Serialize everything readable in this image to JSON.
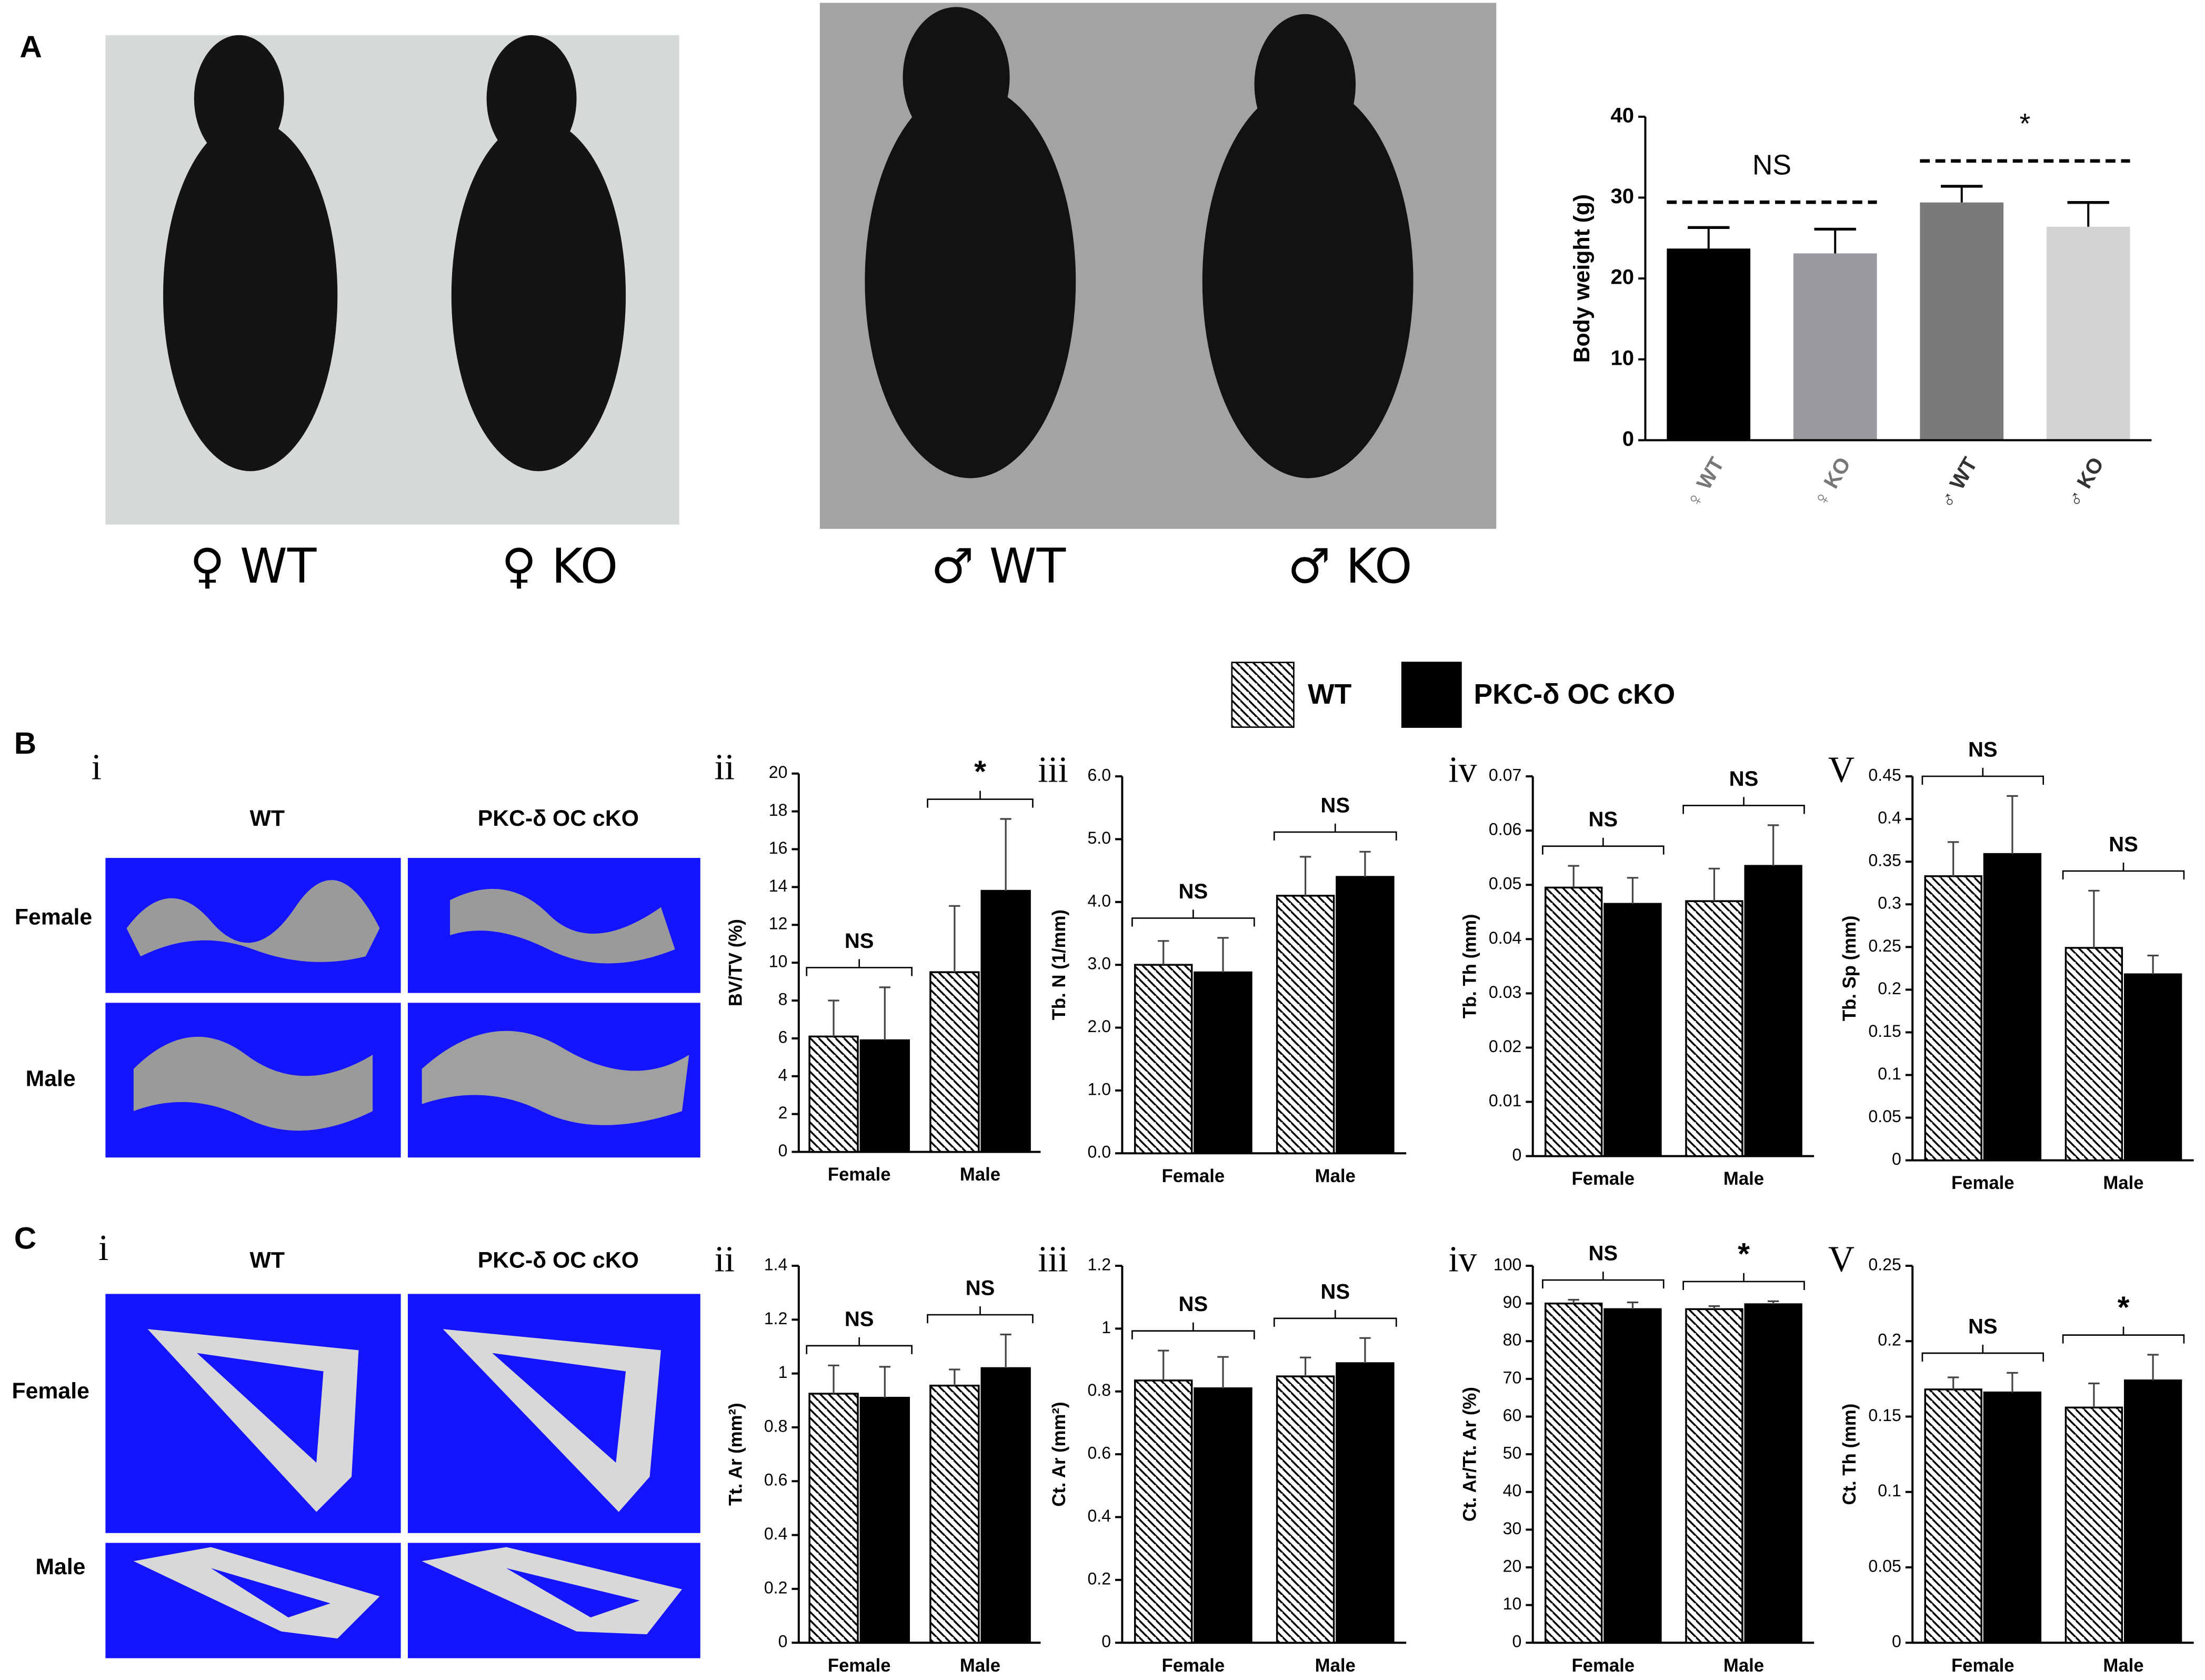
{
  "panel_labels": [
    "A",
    "B",
    "C"
  ],
  "photo_captions": [
    "♀ WT",
    "♀ KO",
    "♂ WT",
    "♂ KO"
  ],
  "legend": [
    {
      "name": "WT",
      "pattern": "hatch"
    },
    {
      "name": "PKC-δ OC cKO",
      "color": "#000000"
    }
  ],
  "renders": [
    {
      "label": "i",
      "columns": [
        "WT",
        "PKC-δ OC cKO"
      ],
      "rows": [
        "Female",
        "Male"
      ]
    },
    {
      "label": "i",
      "columns": [
        "WT",
        "PKC-δ OC cKO"
      ],
      "rows": [
        "Female",
        "Male"
      ]
    }
  ],
  "chart_data": [
    {
      "type": "bar",
      "ylabel": "Body weight (g)",
      "categories": [
        "♀ WT",
        "♀ KO",
        "♂ WT",
        "♂ KO"
      ],
      "values": [
        23.7,
        23.1,
        29.4,
        26.4
      ],
      "errors": [
        2.6,
        3.0,
        2.0,
        3.0
      ],
      "colors": [
        "#000000",
        "#9a9a9e",
        "#7a7a7a",
        "#d3d3d3"
      ],
      "ylim": [
        0,
        40
      ],
      "yticks": [
        0,
        10,
        20,
        30,
        40
      ],
      "annotations": [
        "NS",
        "*"
      ]
    },
    {
      "type": "grouped_bar",
      "label": "ii",
      "ylabel": "BV/TV (%)",
      "categories": [
        "Female",
        "Male"
      ],
      "series": [
        {
          "pattern": "hatch",
          "values": [
            6.1,
            9.5
          ],
          "errors": [
            1.9,
            3.5
          ]
        },
        {
          "color": "#000000",
          "values": [
            5.9,
            13.8
          ],
          "errors": [
            2.8,
            3.8
          ]
        }
      ],
      "ylim": [
        0,
        20
      ],
      "yticks": [
        0,
        2,
        4,
        6,
        8,
        10,
        12,
        14,
        16,
        18,
        20
      ],
      "annotations": [
        "NS",
        "*"
      ]
    },
    {
      "type": "grouped_bar",
      "label": "iii",
      "ylabel": "Tb. N (1/mm)",
      "categories": [
        "Female",
        "Male"
      ],
      "series": [
        {
          "pattern": "hatch",
          "values": [
            3.0,
            4.1
          ],
          "errors": [
            0.38,
            0.62
          ]
        },
        {
          "color": "#000000",
          "values": [
            2.88,
            4.4
          ],
          "errors": [
            0.55,
            0.4
          ]
        }
      ],
      "ylim": [
        0,
        6
      ],
      "yticks": [
        {
          "value": 0,
          "label": "0.0"
        },
        {
          "value": 1,
          "label": "1.0"
        },
        {
          "value": 2,
          "label": "2.0"
        },
        {
          "value": 3,
          "label": "3.0"
        },
        {
          "value": 4,
          "label": "4.0"
        },
        {
          "value": 5,
          "label": "5.0"
        },
        {
          "value": 6,
          "label": "6.0"
        }
      ],
      "annotations": [
        "NS",
        "NS"
      ]
    },
    {
      "type": "grouped_bar",
      "label": "iv",
      "ylabel": "Tb. Th (mm)",
      "categories": [
        "Female",
        "Male"
      ],
      "series": [
        {
          "pattern": "hatch",
          "values": [
            0.0495,
            0.047
          ],
          "errors": [
            0.004,
            0.006
          ]
        },
        {
          "color": "#000000",
          "values": [
            0.0465,
            0.0535
          ],
          "errors": [
            0.0048,
            0.0075
          ]
        }
      ],
      "ylim": [
        0,
        0.07
      ],
      "yticks": [
        0,
        0.01,
        0.02,
        0.03,
        0.04,
        0.05,
        0.06,
        0.07
      ],
      "annotations": [
        "NS",
        "NS"
      ]
    },
    {
      "type": "grouped_bar",
      "label": "V",
      "ylabel": "Tb. Sp (mm)",
      "categories": [
        "Female",
        "Male"
      ],
      "series": [
        {
          "pattern": "hatch",
          "values": [
            0.333,
            0.249
          ],
          "errors": [
            0.04,
            0.067
          ]
        },
        {
          "color": "#000000",
          "values": [
            0.359,
            0.218
          ],
          "errors": [
            0.068,
            0.022
          ]
        }
      ],
      "ylim": [
        0,
        0.45
      ],
      "yticks": [
        0,
        0.05,
        0.1,
        0.15,
        0.2,
        0.25,
        0.3,
        0.35,
        0.4,
        0.45
      ],
      "annotations": [
        "NS",
        "NS"
      ]
    },
    {
      "type": "grouped_bar",
      "label": "ii",
      "ylabel": "Tt. Ar (mm²)",
      "categories": [
        "Female",
        "Male"
      ],
      "series": [
        {
          "pattern": "hatch",
          "values": [
            0.925,
            0.955
          ],
          "errors": [
            0.105,
            0.06
          ]
        },
        {
          "color": "#000000",
          "values": [
            0.91,
            1.02
          ],
          "errors": [
            0.115,
            0.125
          ]
        }
      ],
      "ylim": [
        0,
        1.4
      ],
      "yticks": [
        0,
        0.2,
        0.4,
        0.6,
        0.8,
        1,
        1.2,
        1.4
      ],
      "annotations": [
        "NS",
        "NS"
      ]
    },
    {
      "type": "grouped_bar",
      "label": "iii",
      "ylabel": "Ct. Ar (mm²)",
      "categories": [
        "Female",
        "Male"
      ],
      "series": [
        {
          "pattern": "hatch",
          "values": [
            0.835,
            0.848
          ],
          "errors": [
            0.095,
            0.06
          ]
        },
        {
          "color": "#000000",
          "values": [
            0.81,
            0.89
          ],
          "errors": [
            0.1,
            0.08
          ]
        }
      ],
      "ylim": [
        0,
        1.2
      ],
      "yticks": [
        0,
        0.2,
        0.4,
        0.6,
        0.8,
        1,
        1.2
      ],
      "annotations": [
        "NS",
        "NS"
      ]
    },
    {
      "type": "grouped_bar",
      "label": "iv",
      "ylabel": "Ct. Ar/Tt. Ar (%)",
      "categories": [
        "Female",
        "Male"
      ],
      "series": [
        {
          "pattern": "hatch",
          "values": [
            90,
            88.5
          ],
          "errors": [
            1,
            0.8
          ]
        },
        {
          "color": "#000000",
          "values": [
            88.5,
            89.8
          ],
          "errors": [
            1.8,
            0.8
          ]
        }
      ],
      "ylim": [
        0,
        100
      ],
      "yticks": [
        0,
        10,
        20,
        30,
        40,
        50,
        60,
        70,
        80,
        90,
        100
      ],
      "annotations": [
        "NS",
        "*"
      ]
    },
    {
      "type": "grouped_bar",
      "label": "V",
      "ylabel": "Ct. Th (mm)",
      "categories": [
        "Female",
        "Male"
      ],
      "series": [
        {
          "pattern": "hatch",
          "values": [
            0.168,
            0.156
          ],
          "errors": [
            0.008,
            0.016
          ]
        },
        {
          "color": "#000000",
          "values": [
            0.166,
            0.174
          ],
          "errors": [
            0.013,
            0.017
          ]
        }
      ],
      "ylim": [
        0,
        0.25
      ],
      "yticks": [
        0,
        0.05,
        0.1,
        0.15,
        0.2,
        0.25
      ],
      "annotations": [
        "NS",
        "*"
      ]
    }
  ]
}
